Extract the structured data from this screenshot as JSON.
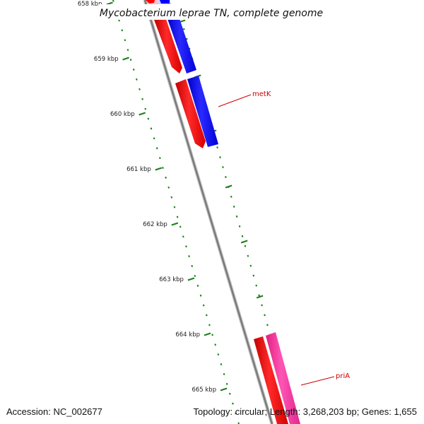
{
  "map": {
    "title": "Mycobacterium leprae TN, complete genome",
    "ticks": [
      "658 kbp",
      "659 kbp",
      "660 kbp",
      "661 kbp",
      "662 kbp",
      "663 kbp",
      "664 kbp",
      "665 kbp"
    ],
    "genes": [
      {
        "label": "metK"
      },
      {
        "label": "priA"
      }
    ],
    "colors": {
      "forward_cds": "#ff0000",
      "reverse_cds": "#0000ff",
      "reverse_cds_alt": "#ff33aa",
      "backbone": "#808080",
      "tick": "#1a7f1a",
      "label": "#cc0000"
    }
  },
  "footer": {
    "accession": "Accession: NC_002677",
    "summary": "Topology: circular; Length: 3,268,203 bp; Genes: 1,655"
  }
}
